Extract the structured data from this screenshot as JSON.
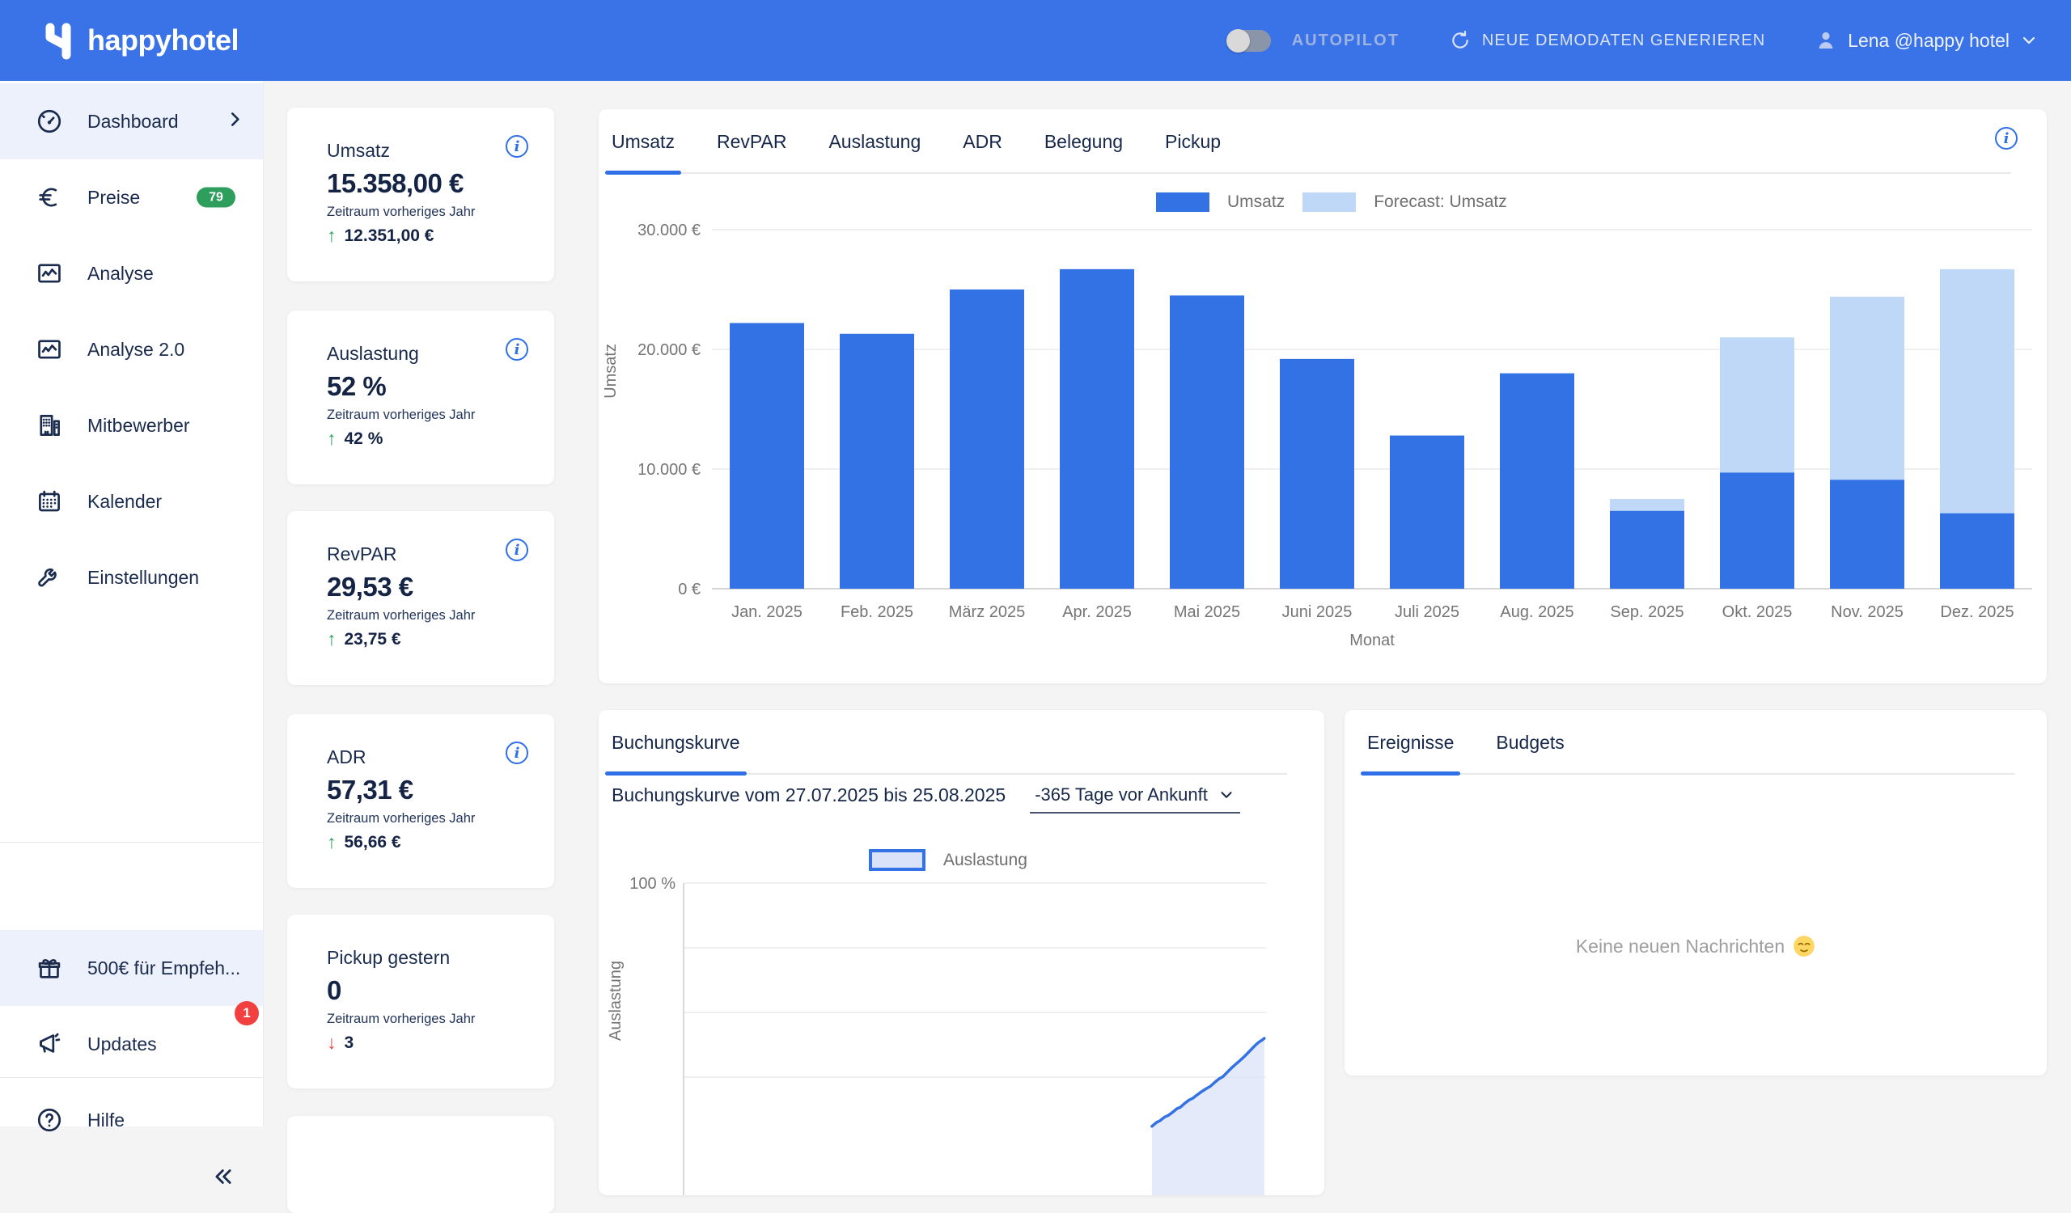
{
  "header": {
    "logo_text": "happyhotel",
    "autopilot_label": "AUTOPILOT",
    "autopilot_enabled": false,
    "generate_label": "NEUE DEMODATEN GENERIEREN",
    "user_label": "Lena @happy hotel"
  },
  "sidebar": {
    "items": [
      {
        "id": "dashboard",
        "label": "Dashboard",
        "icon": "speedometer",
        "active": true,
        "chevron": true
      },
      {
        "id": "preise",
        "label": "Preise",
        "icon": "euro",
        "badge": "79",
        "badge_color": "#2e9e5c"
      },
      {
        "id": "analyse",
        "label": "Analyse",
        "icon": "line-chart"
      },
      {
        "id": "analyse-2-0",
        "label": "Analyse 2.0",
        "icon": "line-chart"
      },
      {
        "id": "mitbewerber",
        "label": "Mitbewerber",
        "icon": "building"
      },
      {
        "id": "kalender",
        "label": "Kalender",
        "icon": "calendar"
      },
      {
        "id": "einstellungen",
        "label": "Einstellungen",
        "icon": "wrench"
      }
    ],
    "bottom_items": [
      {
        "id": "referral",
        "label": "500€ für Empfeh...",
        "icon": "gift",
        "active": true
      },
      {
        "id": "updates",
        "label": "Updates",
        "icon": "megaphone",
        "badge": "1",
        "badge_color": "#f24040"
      },
      {
        "id": "hilfe",
        "label": "Hilfe",
        "icon": "help"
      }
    ]
  },
  "kpis": [
    {
      "title": "Umsatz",
      "value": "15.358,00 €",
      "subtitle": "Zeitraum vorheriges Jahr",
      "delta": "12.351,00 €",
      "direction": "up",
      "info": true
    },
    {
      "title": "Auslastung",
      "value": "52 %",
      "subtitle": "Zeitraum vorheriges Jahr",
      "delta": "42 %",
      "direction": "up",
      "info": true
    },
    {
      "title": "RevPAR",
      "value": "29,53 €",
      "subtitle": "Zeitraum vorheriges Jahr",
      "delta": "23,75 €",
      "direction": "up",
      "info": true
    },
    {
      "title": "ADR",
      "value": "57,31 €",
      "subtitle": "Zeitraum vorheriges Jahr",
      "delta": "56,66 €",
      "direction": "up",
      "info": true
    },
    {
      "title": "Pickup gestern",
      "value": "0",
      "subtitle": "Zeitraum vorheriges Jahr",
      "delta": "3",
      "direction": "down",
      "info": false
    }
  ],
  "main_chart": {
    "tabs": [
      {
        "label": "Umsatz",
        "active": true
      },
      {
        "label": "RevPAR"
      },
      {
        "label": "Auslastung"
      },
      {
        "label": "ADR"
      },
      {
        "label": "Belegung"
      },
      {
        "label": "Pickup"
      }
    ],
    "chart_data": {
      "type": "bar",
      "xlabel": "Monat",
      "ylabel": "Umsatz",
      "ylim": [
        0,
        30000
      ],
      "grid": true,
      "legend_position": "top",
      "yticks": [
        {
          "value": 30000,
          "label": "30.000 €"
        },
        {
          "value": 20000,
          "label": "20.000 €"
        },
        {
          "value": 10000,
          "label": "10.000 €"
        },
        {
          "value": 0,
          "label": "0 €"
        }
      ],
      "categories": [
        "Jan. 2025",
        "Feb. 2025",
        "März 2025",
        "Apr. 2025",
        "Mai 2025",
        "Juni 2025",
        "Juli 2025",
        "Aug. 2025",
        "Sep. 2025",
        "Okt. 2025",
        "Nov. 2025",
        "Dez. 2025"
      ],
      "series": [
        {
          "name": "Umsatz",
          "color": "#3372e4",
          "values": [
            22200,
            21300,
            25000,
            26700,
            24500,
            19200,
            12800,
            18000,
            6500,
            9700,
            9100,
            6300
          ]
        },
        {
          "name": "Forecast: Umsatz",
          "color": "#bfd8f8",
          "values": [
            null,
            null,
            null,
            null,
            null,
            null,
            null,
            null,
            7500,
            21000,
            24400,
            26700
          ]
        }
      ]
    }
  },
  "booking": {
    "tabs": [
      {
        "label": "Buchungskurve",
        "active": true
      }
    ],
    "heading": "Buchungskurve vom 27.07.2025 bis 25.08.2025",
    "range_select_value": "-365 Tage vor Ankunft",
    "chart_data": {
      "type": "area",
      "ylabel": "Auslastung",
      "ylim": [
        0,
        100
      ],
      "grid": true,
      "yticks": [
        {
          "value": 100,
          "label": "100 %"
        },
        {
          "value": 75,
          "label": ""
        },
        {
          "value": 50,
          "label": ""
        },
        {
          "value": 25,
          "label": ""
        }
      ],
      "series": [
        {
          "name": "Auslastung",
          "color": "#3372e4",
          "fill": "#dbe3f8",
          "points": [
            [
              0.804,
              6.0
            ],
            [
              0.812,
              7.5
            ],
            [
              0.818,
              8.2
            ],
            [
              0.826,
              9.6
            ],
            [
              0.832,
              10.2
            ],
            [
              0.84,
              11.5
            ],
            [
              0.847,
              12.8
            ],
            [
              0.853,
              13.4
            ],
            [
              0.86,
              14.8
            ],
            [
              0.868,
              16.2
            ],
            [
              0.874,
              16.8
            ],
            [
              0.882,
              18.2
            ],
            [
              0.89,
              19.5
            ],
            [
              0.897,
              20.5
            ],
            [
              0.904,
              21.4
            ],
            [
              0.912,
              23.0
            ],
            [
              0.919,
              24.3
            ],
            [
              0.926,
              25.2
            ],
            [
              0.933,
              26.8
            ],
            [
              0.94,
              28.4
            ],
            [
              0.947,
              29.8
            ],
            [
              0.954,
              31.2
            ],
            [
              0.961,
              32.6
            ],
            [
              0.968,
              34.2
            ],
            [
              0.975,
              35.8
            ],
            [
              0.981,
              37.2
            ],
            [
              0.987,
              38.4
            ],
            [
              0.993,
              39.3
            ],
            [
              0.997,
              40.0
            ]
          ]
        }
      ]
    }
  },
  "events": {
    "tabs": [
      {
        "label": "Ereignisse",
        "active": true
      },
      {
        "label": "Budgets"
      }
    ],
    "empty_message": "Keine neuen Nachrichten",
    "empty_emoji": "relieved-face"
  },
  "colors": {
    "header": "#3a72e8",
    "accent": "#2f6fe8",
    "bar": "#3372e4",
    "forecast": "#bfd8f8",
    "green": "#2e9e5c",
    "red": "#f24040",
    "navy": "#1a2b4e",
    "gray_text": "#757575"
  }
}
